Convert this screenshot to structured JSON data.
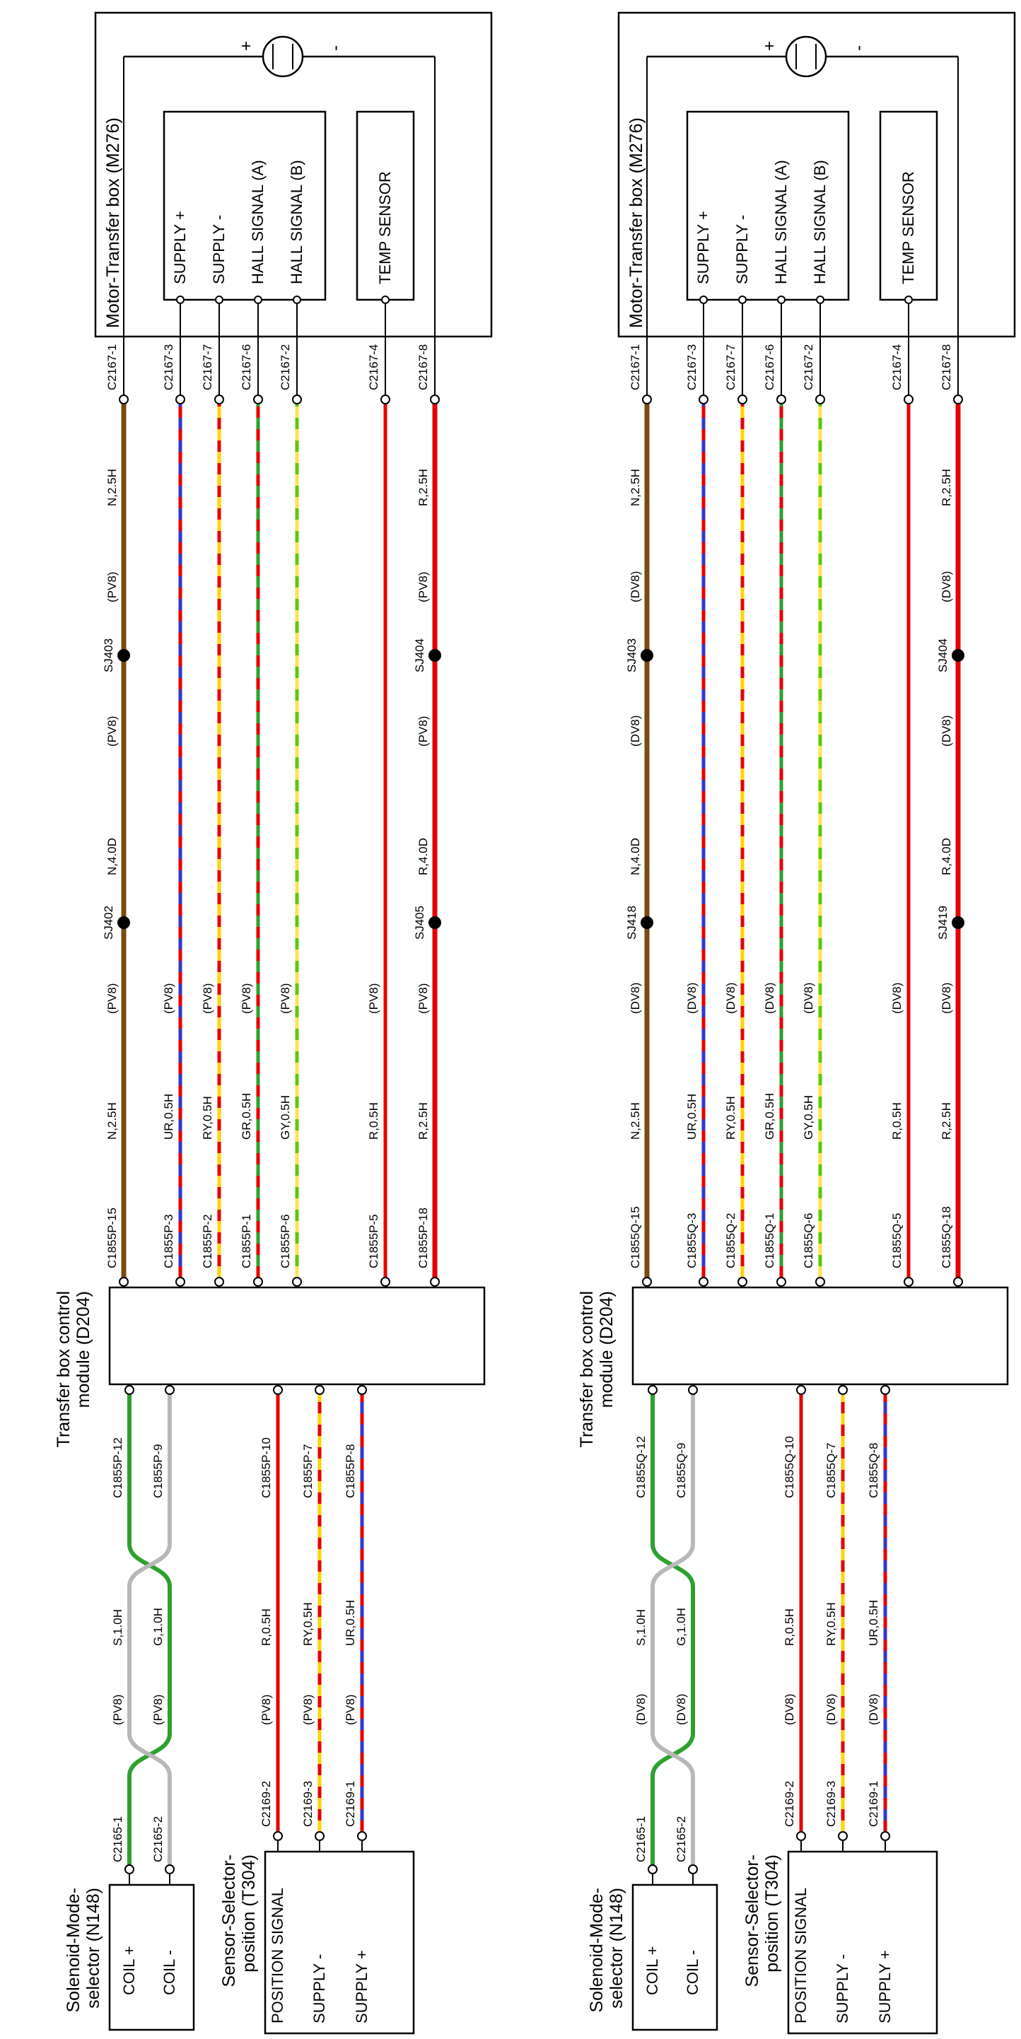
{
  "wire_colors": {
    "N": {
      "base": "#7a4a10",
      "stripe": null
    },
    "R": {
      "base": "#e60000",
      "stripe": null
    },
    "UR": {
      "base": "#3535cc",
      "stripe": "#e60000"
    },
    "RY": {
      "base": "#e60000",
      "stripe": "#ffd400"
    },
    "GR": {
      "base": "#2ea02e",
      "stripe": "#e60000"
    },
    "GY": {
      "base": "#5ec800",
      "stripe": "#ffe44d"
    },
    "G": {
      "base": "#2ea02e",
      "stripe": null
    },
    "S": {
      "base": "#b8b8b8",
      "stripe": null
    }
  },
  "diagrams": [
    {
      "variant": "PV8",
      "motor": {
        "title": "Motor-Transfer box (M276)",
        "plus": "+",
        "minus": "-",
        "connector_pins": [
          "SUPPLY +",
          "SUPPLY -",
          "HALL SIGNAL (A)",
          "HALL SIGNAL (B)"
        ],
        "temp_sensor": "TEMP SENSOR"
      },
      "control_module": {
        "title": [
          "Transfer box control",
          "module (D204)"
        ]
      },
      "solenoid": {
        "title": [
          "Solenoid-Mode-",
          "selector (N148)"
        ],
        "pins": [
          "COIL +",
          "COIL -"
        ]
      },
      "sensor": {
        "title": [
          "Sensor-Selector-",
          "position (T304)"
        ],
        "pins": [
          "POSITION SIGNAL",
          "SUPPLY -",
          "SUPPLY +"
        ]
      },
      "main_wires": [
        {
          "module_conn": "C1855P-15",
          "motor_conn": "C2167-1",
          "color": "N",
          "code": "N,2.5H",
          "tag": "(PV8)",
          "heavy_code": "N,4.0D",
          "code_right": "N,2.5H",
          "splices": [
            "SJ402",
            "SJ403"
          ]
        },
        {
          "module_conn": "C1855P-3",
          "motor_conn": "C2167-3",
          "color": "UR",
          "code": "UR,0.5H",
          "tag": "(PV8)"
        },
        {
          "module_conn": "C1855P-2",
          "motor_conn": "C2167-7",
          "color": "RY",
          "code": "RY,0.5H",
          "tag": "(PV8)"
        },
        {
          "module_conn": "C1855P-1",
          "motor_conn": "C2167-6",
          "color": "GR",
          "code": "GR,0.5H",
          "tag": "(PV8)"
        },
        {
          "module_conn": "C1855P-6",
          "motor_conn": "C2167-2",
          "color": "GY",
          "code": "GY,0.5H",
          "tag": "(PV8)"
        },
        {
          "module_conn": "C1855P-5",
          "motor_conn": "C2167-4",
          "color": "R",
          "code": "R,0.5H",
          "tag": "(PV8)"
        },
        {
          "module_conn": "C1855P-18",
          "motor_conn": "C2167-8",
          "color": "R",
          "code": "R,2.5H",
          "tag": "(PV8)",
          "heavy_code": "R,4.0D",
          "code_right": "R,2.5H",
          "splices": [
            "SJ405",
            "SJ404"
          ]
        }
      ],
      "pair_wires": [
        {
          "module_conn": "C1855P-12",
          "dev_conn": "C2165-1",
          "color": "G",
          "code": "G,1.0H",
          "tag": "(PV8)"
        },
        {
          "module_conn": "C1855P-9",
          "dev_conn": "C2165-2",
          "color": "S",
          "code": "S,1.0H",
          "tag": "(PV8)"
        }
      ],
      "sensor_wires": [
        {
          "module_conn": "C1855P-10",
          "dev_conn": "C2169-2",
          "color": "R",
          "code": "R,0.5H",
          "tag": "(PV8)"
        },
        {
          "module_conn": "C1855P-7",
          "dev_conn": "C2169-3",
          "color": "RY",
          "code": "RY,0.5H",
          "tag": "(PV8)"
        },
        {
          "module_conn": "C1855P-8",
          "dev_conn": "C2169-1",
          "color": "UR",
          "code": "UR,0.5H",
          "tag": "(PV8)"
        }
      ]
    },
    {
      "variant": "DV8",
      "motor": {
        "title": "Motor-Transfer box (M276)",
        "plus": "+",
        "minus": "-",
        "connector_pins": [
          "SUPPLY +",
          "SUPPLY -",
          "HALL SIGNAL (A)",
          "HALL SIGNAL (B)"
        ],
        "temp_sensor": "TEMP SENSOR"
      },
      "control_module": {
        "title": [
          "Transfer box control",
          "module (D204)"
        ]
      },
      "solenoid": {
        "title": [
          "Solenoid-Mode-",
          "selector (N148)"
        ],
        "pins": [
          "COIL +",
          "COIL -"
        ]
      },
      "sensor": {
        "title": [
          "Sensor-Selector-",
          "position (T304)"
        ],
        "pins": [
          "POSITION SIGNAL",
          "SUPPLY -",
          "SUPPLY +"
        ]
      },
      "main_wires": [
        {
          "module_conn": "C1855Q-15",
          "motor_conn": "C2167-1",
          "color": "N",
          "code": "N,2.5H",
          "tag": "(DV8)",
          "heavy_code": "N,4.0D",
          "code_right": "N,2.5H",
          "splices": [
            "SJ418",
            "SJ403"
          ]
        },
        {
          "module_conn": "C1855Q-3",
          "motor_conn": "C2167-3",
          "color": "UR",
          "code": "UR,0.5H",
          "tag": "(DV8)"
        },
        {
          "module_conn": "C1855Q-2",
          "motor_conn": "C2167-7",
          "color": "RY",
          "code": "RY,0.5H",
          "tag": "(DV8)"
        },
        {
          "module_conn": "C1855Q-1",
          "motor_conn": "C2167-6",
          "color": "GR",
          "code": "GR,0.5H",
          "tag": "(DV8)"
        },
        {
          "module_conn": "C1855Q-6",
          "motor_conn": "C2167-2",
          "color": "GY",
          "code": "GY,0.5H",
          "tag": "(DV8)"
        },
        {
          "module_conn": "C1855Q-5",
          "motor_conn": "C2167-4",
          "color": "R",
          "code": "R,0.5H",
          "tag": "(DV8)"
        },
        {
          "module_conn": "C1855Q-18",
          "motor_conn": "C2167-8",
          "color": "R",
          "code": "R,2.5H",
          "tag": "(DV8)",
          "heavy_code": "R,4.0D",
          "code_right": "R,2.5H",
          "splices": [
            "SJ419",
            "SJ404"
          ]
        }
      ],
      "pair_wires": [
        {
          "module_conn": "C1855Q-12",
          "dev_conn": "C2165-1",
          "color": "G",
          "code": "G,1.0H",
          "tag": "(DV8)"
        },
        {
          "module_conn": "C1855Q-9",
          "dev_conn": "C2165-2",
          "color": "S",
          "code": "S,1.0H",
          "tag": "(DV8)"
        }
      ],
      "sensor_wires": [
        {
          "module_conn": "C1855Q-10",
          "dev_conn": "C2169-2",
          "color": "R",
          "code": "R,0.5H",
          "tag": "(DV8)"
        },
        {
          "module_conn": "C1855Q-7",
          "dev_conn": "C2169-3",
          "color": "RY",
          "code": "RY,0.5H",
          "tag": "(DV8)"
        },
        {
          "module_conn": "C1855Q-8",
          "dev_conn": "C2169-1",
          "color": "UR",
          "code": "UR,0.5H",
          "tag": "(DV8)"
        }
      ]
    }
  ]
}
